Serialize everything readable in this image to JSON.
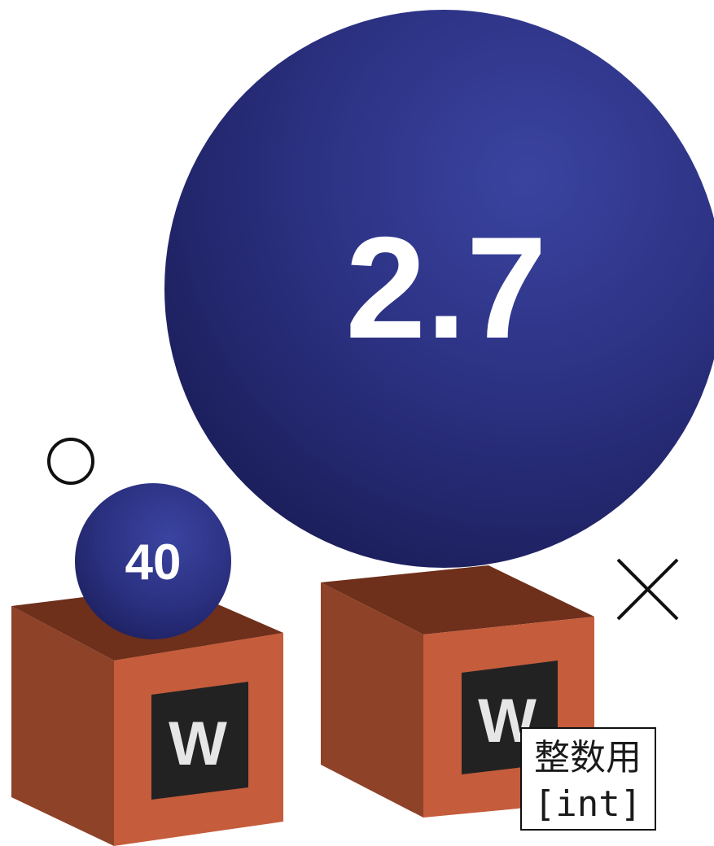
{
  "small_ball": {
    "value": "40"
  },
  "large_ball": {
    "value": "2.7"
  },
  "box_left": {
    "letter": "W"
  },
  "box_right": {
    "letter": "W"
  },
  "marks": {
    "fits": "circle-mark",
    "does_not_fit": "cross-mark"
  },
  "label": {
    "line1": "整数用",
    "line2": "[int]"
  },
  "colors": {
    "ball": "#2b3080",
    "ball_highlight": "#3a44a0",
    "ball_shadow": "#1c1f5c",
    "box_front": "#c55c3c",
    "box_side": "#8e4228",
    "box_inside": "#6e2f1b",
    "box_flap": "#8a4024",
    "plate": "#222222",
    "letter": "#e6e6e6"
  }
}
